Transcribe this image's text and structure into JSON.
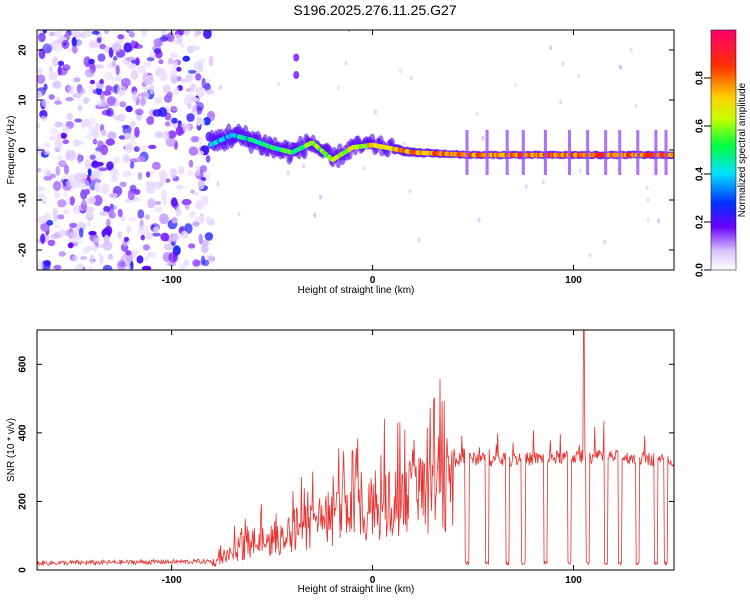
{
  "title": "S196.2025.276.11.25.G27",
  "chart_data": [
    {
      "type": "heatmap",
      "xlabel": "Height of straight line (km)",
      "ylabel": "Frequency (Hz)",
      "xlim": [
        -167,
        150
      ],
      "ylim": [
        -24,
        24
      ],
      "x_ticks": [
        -100,
        0,
        100
      ],
      "y_ticks": [
        -20,
        -10,
        0,
        10,
        20
      ],
      "colorbar": {
        "label": "Normalized spectral amplitude",
        "range": [
          0,
          1
        ],
        "ticks": [
          0.0,
          0.2,
          0.4,
          0.6,
          0.8
        ],
        "tick_labels": [
          "0.0",
          "0.2",
          "0.4",
          "0.6",
          "0.8"
        ]
      },
      "regions": [
        {
          "name": "noise",
          "x_range": [
            -167,
            -80
          ],
          "freq_range": [
            -24,
            24
          ],
          "amplitude": 0.15
        },
        {
          "name": "tonal-track",
          "x_range": [
            -80,
            150
          ],
          "freq_approx": 0,
          "amplitude": 0.9
        }
      ],
      "track_points": [
        {
          "x": -78,
          "freq": 1.5
        },
        {
          "x": -70,
          "freq": 3
        },
        {
          "x": -60,
          "freq": 2
        },
        {
          "x": -50,
          "freq": 0.5
        },
        {
          "x": -40,
          "freq": -0.5
        },
        {
          "x": -30,
          "freq": 1.5
        },
        {
          "x": -20,
          "freq": -2
        },
        {
          "x": -10,
          "freq": 0.5
        },
        {
          "x": 0,
          "freq": 1
        },
        {
          "x": 20,
          "freq": -0.5
        },
        {
          "x": 50,
          "freq": -1
        },
        {
          "x": 100,
          "freq": -1
        },
        {
          "x": 150,
          "freq": -1
        }
      ],
      "isolated_blobs": [
        {
          "x": -38,
          "freq": 18.5
        },
        {
          "x": -38,
          "freq": 15
        }
      ]
    },
    {
      "type": "line",
      "xlabel": "Height of straight line (km)",
      "ylabel": "SNR (10 * v/v)",
      "xlim": [
        -167,
        150
      ],
      "ylim": [
        0,
        700
      ],
      "x_ticks": [
        -100,
        0,
        100
      ],
      "y_ticks": [
        0,
        200,
        400,
        600
      ],
      "color": "#e8322f",
      "envelope": [
        {
          "x": -167,
          "y": 20
        },
        {
          "x": -80,
          "y": 25
        },
        {
          "x": -70,
          "y": 60
        },
        {
          "x": -60,
          "y": 100
        },
        {
          "x": -50,
          "y": 110
        },
        {
          "x": -40,
          "y": 150
        },
        {
          "x": -30,
          "y": 160
        },
        {
          "x": -20,
          "y": 200
        },
        {
          "x": -10,
          "y": 230
        },
        {
          "x": 0,
          "y": 240
        },
        {
          "x": 10,
          "y": 260
        },
        {
          "x": 20,
          "y": 280
        },
        {
          "x": 30,
          "y": 300
        },
        {
          "x": 40,
          "y": 320
        },
        {
          "x": 50,
          "y": 325
        },
        {
          "x": 60,
          "y": 320
        },
        {
          "x": 80,
          "y": 325
        },
        {
          "x": 100,
          "y": 330
        },
        {
          "x": 120,
          "y": 330
        },
        {
          "x": 150,
          "y": 320
        }
      ],
      "dropouts": [
        47,
        57,
        67,
        75,
        86,
        98,
        107,
        116,
        123,
        132,
        141,
        146
      ],
      "peak": {
        "x": 105,
        "y": 700
      }
    }
  ]
}
